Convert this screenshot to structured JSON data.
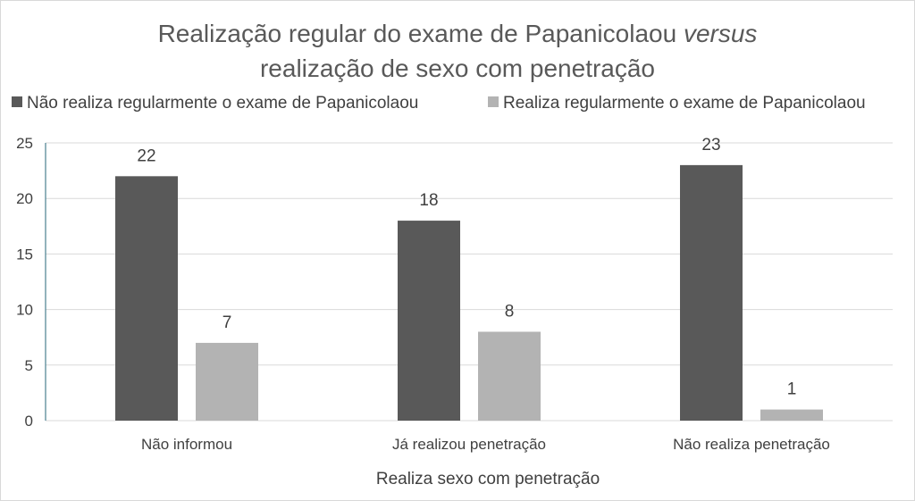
{
  "chart_data": {
    "type": "bar",
    "title_line1": "Realização regular do exame de Papanicolaou",
    "title_line1_italic": "versus",
    "title_line2": "realização de sexo com penetração",
    "xlabel": "Realiza sexo com penetração",
    "ylabel": "",
    "categories": [
      "Não informou",
      "Já realizou penetração",
      "Não realiza penetração"
    ],
    "series": [
      {
        "name": "Não realiza regularmente o exame de Papanicolaou",
        "color": "#595959",
        "values": [
          22,
          18,
          23
        ]
      },
      {
        "name": "Realiza regularmente o exame de Papanicolaou",
        "color": "#b3b3b3",
        "values": [
          7,
          8,
          1
        ]
      }
    ],
    "ylim": [
      0,
      25
    ],
    "yticks": [
      "0",
      "5",
      "10",
      "15",
      "20",
      "25"
    ],
    "grid": true,
    "data_labels": true,
    "legend_position": "top"
  }
}
